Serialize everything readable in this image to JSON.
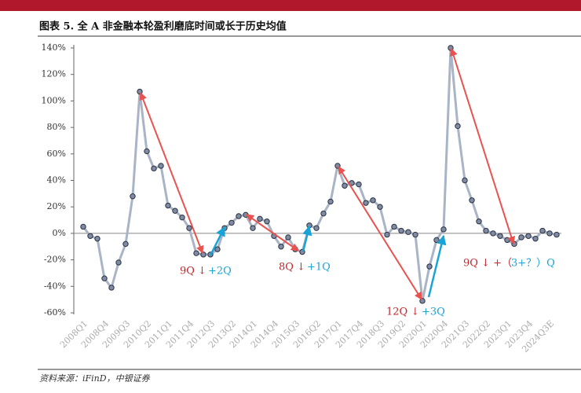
{
  "chart_data": {
    "type": "line",
    "title": "图表 5. 全 A 非金融本轮盈利磨底时间或长于历史均值",
    "source": "资料来源：iFinD，中银证券",
    "categories": [
      "2008Q1",
      null,
      null,
      "2008Q4",
      null,
      null,
      "2009Q3",
      null,
      null,
      "2010Q2",
      null,
      null,
      "2011Q1",
      null,
      null,
      "2011Q4",
      null,
      null,
      "2012Q3",
      null,
      null,
      "2013Q2",
      null,
      null,
      "2014Q1",
      null,
      null,
      "2014Q4",
      null,
      null,
      "2015Q3",
      null,
      null,
      "2016Q2",
      null,
      null,
      "2017Q1",
      null,
      null,
      "2017Q4",
      null,
      null,
      "2018Q3",
      null,
      null,
      "2019Q2",
      null,
      null,
      "2020Q1",
      null,
      null,
      "2020Q4",
      null,
      null,
      "2021Q3",
      null,
      null,
      "2022Q2",
      null,
      null,
      "2023Q1",
      null,
      null,
      "2023Q4",
      null,
      null,
      "2024Q3E",
      null
    ],
    "values": [
      5,
      -2,
      -4,
      -34,
      -41,
      -22,
      -8,
      28,
      107,
      62,
      49,
      51,
      21,
      17,
      12,
      4,
      -15,
      -16,
      -16,
      -12,
      4,
      8,
      13,
      14,
      4,
      11,
      9,
      -2,
      -10,
      -3,
      -12,
      -14,
      6,
      4,
      15,
      24,
      51,
      36,
      38,
      37,
      23,
      25,
      20,
      -1,
      5,
      2,
      1,
      -1,
      -51,
      -25,
      -5,
      3,
      140,
      81,
      40,
      25,
      9,
      2,
      0,
      -2,
      -5,
      -8,
      -3,
      -2,
      -4,
      2,
      0,
      -1
    ],
    "color": "#a9b4c6",
    "ylim": [
      -60,
      140
    ],
    "yticks": [
      {
        "value": -60,
        "label": "-60%"
      },
      {
        "value": -40,
        "label": "-40%"
      },
      {
        "value": -20,
        "label": "-20%"
      },
      {
        "value": 0,
        "label": "0%"
      },
      {
        "value": 20,
        "label": "20%"
      },
      {
        "value": 40,
        "label": "40%"
      },
      {
        "value": 60,
        "label": "60%"
      },
      {
        "value": 80,
        "label": "80%"
      },
      {
        "value": 100,
        "label": "100%"
      },
      {
        "value": 120,
        "label": "120%"
      },
      {
        "value": 140,
        "label": "140%"
      }
    ],
    "annotations": [
      "9Q ↓",
      "+2Q",
      "8Q ↓",
      "+1Q",
      "12Q ↓",
      "+3Q",
      "9Q ↓ +（",
      "3+？）Q"
    ]
  }
}
